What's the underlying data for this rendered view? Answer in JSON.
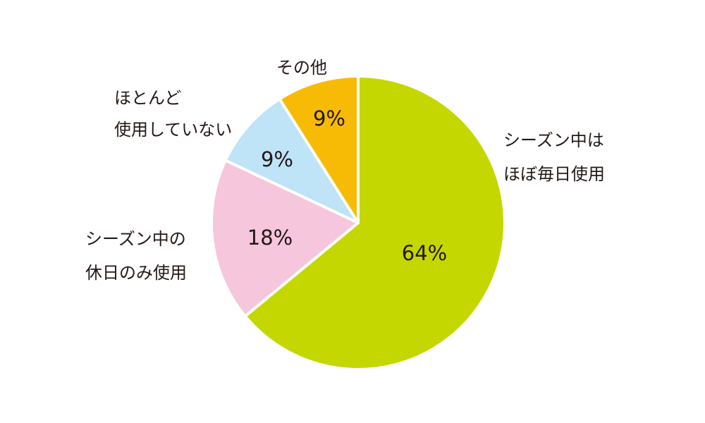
{
  "chart_data": {
    "type": "pie",
    "unit": "%",
    "slices": [
      {
        "label_lines": [
          "シーズン中は",
          "ほぼ毎日使用"
        ],
        "value": 64,
        "display": "64%",
        "color": "#c4d700"
      },
      {
        "label_lines": [
          "シーズン中の",
          "休日のみ使用"
        ],
        "value": 18,
        "display": "18%",
        "color": "#f6c6dc"
      },
      {
        "label_lines": [
          "ほとんど",
          "使用していない"
        ],
        "value": 9,
        "display": "9%",
        "color": "#bfe3f7"
      },
      {
        "label_lines": [
          "その他"
        ],
        "value": 9,
        "display": "9%",
        "color": "#f8bb05"
      }
    ],
    "start": "12 o'clock",
    "direction": "clockwise",
    "legend": "none (labels placed beside slices)"
  }
}
